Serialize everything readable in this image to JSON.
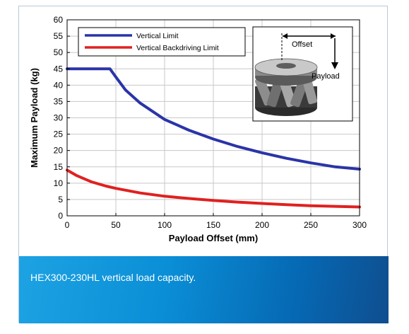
{
  "chart_data": {
    "type": "line",
    "xlabel": "Payload Offset (mm)",
    "ylabel": "Maximum Payload (kg)",
    "xlim": [
      0,
      300
    ],
    "ylim": [
      0,
      60
    ],
    "xticks": [
      0,
      50,
      100,
      150,
      200,
      250,
      300
    ],
    "yticks": [
      0,
      5,
      10,
      15,
      20,
      25,
      30,
      35,
      40,
      45,
      50,
      55,
      60
    ],
    "grid": true,
    "legend_position": "top-left",
    "series": [
      {
        "name": "Vertical Limit",
        "color": "#2a34a8",
        "x": [
          0,
          20,
          44,
          50,
          60,
          75,
          100,
          125,
          150,
          175,
          200,
          225,
          250,
          275,
          300
        ],
        "y": [
          45,
          45,
          45,
          42.5,
          38.5,
          34.5,
          29.5,
          26.2,
          23.5,
          21.2,
          19.3,
          17.6,
          16.2,
          15.0,
          14.3
        ]
      },
      {
        "name": "Vertical Backdriving Limit",
        "color": "#e02020",
        "x": [
          0,
          10,
          25,
          40,
          50,
          75,
          100,
          125,
          150,
          175,
          200,
          225,
          250,
          275,
          300
        ],
        "y": [
          14,
          12.3,
          10.4,
          9.1,
          8.4,
          7.0,
          6.0,
          5.3,
          4.7,
          4.2,
          3.8,
          3.4,
          3.1,
          2.9,
          2.7
        ]
      }
    ],
    "inset": {
      "offset_label": "Offset",
      "payload_label": "Payload"
    }
  },
  "caption": "HEX300-230HL vertical load capacity."
}
